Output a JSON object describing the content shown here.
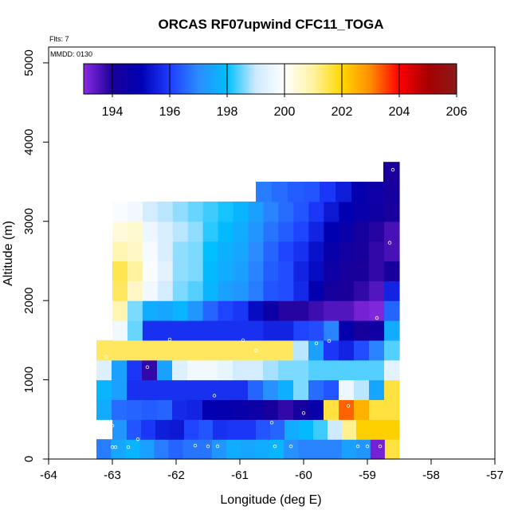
{
  "chart_data": {
    "type": "heatmap",
    "title": "ORCAS RF07upwind CFC11_TOGA",
    "annotations": {
      "flights": "Flts: 7",
      "date": "MMDD: 0130"
    },
    "xlabel": "Longitude (deg E)",
    "ylabel": "Altitude (m)",
    "xlim": [
      -64,
      -57
    ],
    "ylim": [
      0,
      5200
    ],
    "xticks": [
      -64,
      -63,
      -62,
      -61,
      -60,
      -59,
      -58,
      -57
    ],
    "yticks": [
      0,
      1000,
      2000,
      3000,
      4000,
      5000
    ],
    "colorbar": {
      "min": 193,
      "max": 206,
      "ticks": [
        194,
        196,
        198,
        200,
        202,
        204,
        206
      ],
      "stops": [
        "#8a2be2",
        "#1a0099",
        "#0000b3",
        "#1e3cff",
        "#2b8cff",
        "#00bfff",
        "#cfeaff",
        "#ffffff",
        "#fff3a0",
        "#ffd700",
        "#ff8c00",
        "#ff0000",
        "#a60000",
        "#8b1a1a"
      ]
    },
    "cells": [
      {
        "x0": -63.25,
        "x1": -58.5,
        "y0": 0,
        "y1": 250,
        "values": [
          196.8,
          197.5,
          197.8,
          197.4,
          196.8,
          196.5,
          196.7,
          196.7,
          197.2,
          197.6,
          197.5,
          197.6,
          197.8,
          197.1,
          196.9,
          196.9,
          196.9,
          197.4,
          197.2,
          193.2,
          201.6
        ]
      },
      {
        "x0": -63.0,
        "x1": -58.5,
        "y0": 250,
        "y1": 500,
        "values": [
          197.2,
          196.3,
          195.9,
          195.5,
          195.4,
          196.1,
          196.3,
          195.8,
          195.9,
          195.9,
          196.3,
          196.5,
          197.6,
          197.9,
          198.3,
          199.0,
          201.1,
          202.1,
          202.1,
          202.1
        ]
      },
      {
        "x0": -63.25,
        "x1": -58.5,
        "y0": 500,
        "y1": 750,
        "values": [
          197.6,
          196.6,
          196.5,
          196.4,
          196.5,
          195.7,
          195.6,
          194.9,
          194.8,
          194.6,
          194.5,
          194.2,
          193.8,
          194.2,
          194.7,
          201.6,
          203.3,
          202.5,
          201.6,
          201.6
        ]
      },
      {
        "x0": -63.25,
        "x1": -58.5,
        "y0": 750,
        "y1": 1000,
        "values": [
          197.8,
          197.4,
          195.8,
          195.8,
          195.8,
          195.8,
          195.8,
          195.8,
          195.8,
          195.8,
          196.5,
          197.1,
          197.7,
          198.6,
          196.6,
          196.3,
          199.6,
          198.9,
          197.5,
          201.6
        ]
      },
      {
        "x0": -63.25,
        "x1": -58.5,
        "y0": 1000,
        "y1": 1250,
        "values": [
          199.3,
          197.4,
          195.9,
          193.8,
          197.4,
          199.3,
          199.7,
          199.7,
          199.5,
          199.1,
          199.1,
          198.8,
          198.6,
          198.6,
          198.4,
          198.4,
          198.4,
          198.4,
          198.4,
          199.4
        ]
      },
      {
        "x0": -63.25,
        "x1": -58.5,
        "y0": 1250,
        "y1": 1500,
        "values": [
          201.4,
          201.4,
          201.4,
          201.4,
          201.4,
          201.4,
          201.4,
          201.4,
          201.4,
          201.4,
          201.4,
          201.4,
          201.4,
          198.9,
          197.4,
          195.9,
          195.6,
          196.2,
          196.9,
          198.4
        ]
      },
      {
        "x0": -63.0,
        "x1": -58.5,
        "y0": 1500,
        "y1": 1750,
        "values": [
          199.7,
          198.5,
          195.8,
          195.8,
          195.8,
          195.8,
          195.8,
          195.8,
          195.8,
          195.8,
          195.6,
          195.6,
          196.1,
          196.2,
          196.9,
          194.8,
          194.2,
          194.4,
          197.6
        ]
      },
      {
        "x0": -63.0,
        "x1": -58.5,
        "y0": 1750,
        "y1": 2000,
        "values": [
          200.8,
          198.6,
          197.6,
          197.5,
          197.8,
          197.2,
          196.5,
          196.1,
          195.9,
          195.2,
          194.5,
          193.9,
          193.9,
          193.7,
          193.5,
          193.5,
          193.2,
          193.1,
          196.5
        ]
      },
      {
        "x0": -63.0,
        "x1": -58.5,
        "y0": 2000,
        "y1": 2250,
        "values": [
          201.4,
          200.6,
          199.7,
          199.1,
          198.6,
          198.4,
          197.8,
          197.4,
          197.2,
          196.8,
          196.3,
          196.2,
          195.7,
          194.9,
          194.2,
          194.0,
          193.8,
          193.5,
          195.6
        ]
      },
      {
        "x0": -63.0,
        "x1": -58.5,
        "y0": 2250,
        "y1": 2500,
        "values": [
          201.5,
          201.0,
          199.9,
          199.4,
          198.7,
          198.6,
          197.9,
          197.6,
          197.4,
          196.9,
          196.4,
          196.2,
          195.6,
          195.2,
          194.5,
          194.1,
          194.0,
          193.8,
          194.1
        ]
      },
      {
        "x0": -63.0,
        "x1": -58.5,
        "y0": 2500,
        "y1": 2750,
        "values": [
          200.8,
          200.6,
          199.8,
          199.2,
          198.7,
          198.6,
          198.0,
          197.7,
          197.5,
          197.0,
          196.5,
          196.1,
          195.8,
          195.3,
          194.7,
          194.3,
          194.1,
          193.8,
          193.6
        ]
      },
      {
        "x0": -63.0,
        "x1": -58.5,
        "y0": 2750,
        "y1": 3000,
        "values": [
          200.4,
          200.5,
          199.6,
          199.2,
          198.9,
          198.7,
          198.2,
          197.9,
          197.6,
          197.2,
          196.7,
          196.4,
          196.1,
          195.6,
          195.0,
          194.6,
          194.2,
          193.9,
          193.6
        ]
      },
      {
        "x0": -63.0,
        "x1": -58.5,
        "y0": 3000,
        "y1": 3250,
        "values": [
          199.9,
          199.7,
          199.1,
          198.9,
          198.7,
          198.5,
          198.3,
          198.1,
          197.8,
          197.4,
          196.9,
          196.6,
          196.3,
          195.9,
          195.4,
          195.0,
          194.7,
          194.4,
          194.1
        ]
      },
      {
        "x0": -60.75,
        "x1": -58.5,
        "y0": 3250,
        "y1": 3500,
        "values": [
          196.8,
          196.6,
          196.4,
          196.3,
          195.9,
          195.5,
          194.8,
          194.5,
          194.2
        ]
      },
      {
        "x0": -58.75,
        "x1": -58.5,
        "y0": 3500,
        "y1": 3750,
        "values": [
          194.0
        ]
      }
    ],
    "points": [
      {
        "lon": -63.0,
        "alt": 150
      },
      {
        "lon": -62.95,
        "alt": 150
      },
      {
        "lon": -62.75,
        "alt": 150
      },
      {
        "lon": -62.6,
        "alt": 250
      },
      {
        "lon": -61.7,
        "alt": 170
      },
      {
        "lon": -61.5,
        "alt": 160
      },
      {
        "lon": -61.35,
        "alt": 160
      },
      {
        "lon": -60.45,
        "alt": 160
      },
      {
        "lon": -60.2,
        "alt": 160
      },
      {
        "lon": -59.15,
        "alt": 160
      },
      {
        "lon": -59.0,
        "alt": 160
      },
      {
        "lon": -58.8,
        "alt": 160
      },
      {
        "lon": -63.0,
        "alt": 420
      },
      {
        "lon": -60.5,
        "alt": 460
      },
      {
        "lon": -60.0,
        "alt": 580
      },
      {
        "lon": -59.3,
        "alt": 670
      },
      {
        "lon": -61.4,
        "alt": 800
      },
      {
        "lon": -62.45,
        "alt": 1160
      },
      {
        "lon": -62.1,
        "alt": 1510
      },
      {
        "lon": -60.95,
        "alt": 1500
      },
      {
        "lon": -60.75,
        "alt": 1370
      },
      {
        "lon": -59.8,
        "alt": 1460
      },
      {
        "lon": -59.6,
        "alt": 1490
      },
      {
        "lon": -58.85,
        "alt": 1780
      },
      {
        "lon": -58.65,
        "alt": 2730
      },
      {
        "lon": -58.6,
        "alt": 3650
      },
      {
        "lon": -63.1,
        "alt": 1290
      }
    ]
  }
}
